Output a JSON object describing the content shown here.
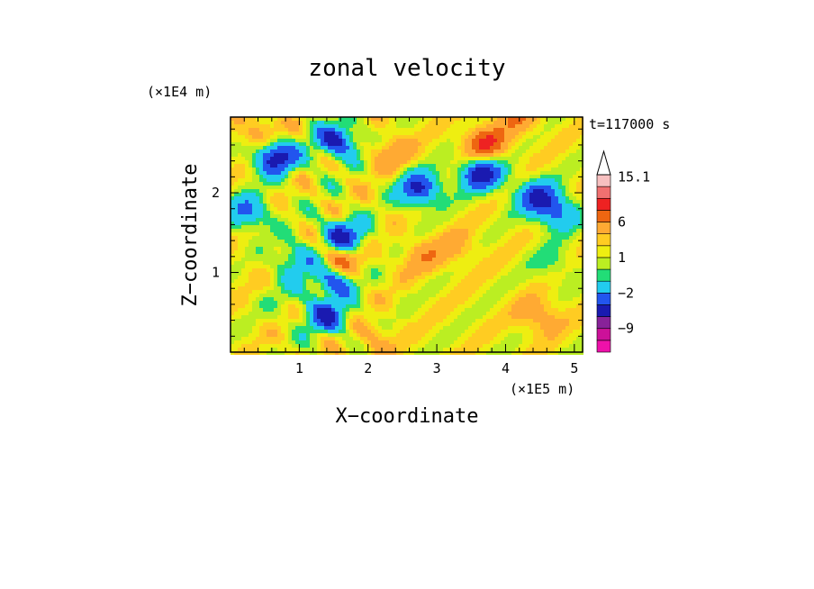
{
  "chart_data": {
    "type": "heatmap",
    "title": "zonal velocity",
    "xlabel": "X−coordinate",
    "ylabel": "Z−coordinate",
    "x_scale_label": "(×1E5 m)",
    "y_scale_label": "(×1E4 m)",
    "time_label": "t=117000 s",
    "xlim": [
      0,
      5.12
    ],
    "ylim": [
      0,
      2.95
    ],
    "x_ticks": [
      1,
      2,
      3,
      4,
      5
    ],
    "y_ticks": [
      1,
      2
    ],
    "x_tick_labels": [
      "1",
      "2",
      "3",
      "4",
      "5"
    ],
    "y_tick_labels": [
      "1",
      "2"
    ],
    "colorbar": {
      "levels": [
        -15,
        -12,
        -9,
        -6,
        -4,
        -2,
        -1,
        0,
        1,
        2,
        4,
        6,
        9,
        12,
        15.1
      ],
      "colors": [
        "#ee11aa",
        "#cc1199",
        "#882299",
        "#1a1ab0",
        "#2255ee",
        "#22ccee",
        "#22dd77",
        "#bbee22",
        "#eeee11",
        "#ffcc22",
        "#ffaa33",
        "#ee6611",
        "#ee2222",
        "#f07070",
        "#f7c0c0"
      ],
      "tick_values": [
        15.1,
        6,
        1,
        -2,
        -9
      ],
      "tick_labels": [
        "15.1",
        "6",
        "1",
        "−2",
        "−9"
      ],
      "extend": "max"
    },
    "background_value": 0.5,
    "features": [
      {
        "x": 0.65,
        "z": 2.45,
        "value": -8
      },
      {
        "x": 1.55,
        "z": 2.65,
        "value": -7
      },
      {
        "x": 2.75,
        "z": 2.05,
        "value": -7
      },
      {
        "x": 3.65,
        "z": 2.25,
        "value": -8
      },
      {
        "x": 4.45,
        "z": 1.95,
        "value": -6
      },
      {
        "x": 4.75,
        "z": 1.75,
        "value": -5
      },
      {
        "x": 0.25,
        "z": 1.75,
        "value": -5
      },
      {
        "x": 1.65,
        "z": 1.45,
        "value": -7
      },
      {
        "x": 1.5,
        "z": 0.9,
        "value": -6
      },
      {
        "x": 1.4,
        "z": 0.45,
        "value": -6
      },
      {
        "x": 0.95,
        "z": 1.15,
        "value": -4
      },
      {
        "x": 3.7,
        "z": 2.6,
        "value": 6
      },
      {
        "x": 0.4,
        "z": 2.75,
        "value": 3
      },
      {
        "x": 2.35,
        "z": 2.5,
        "value": 3
      },
      {
        "x": 1.6,
        "z": 1.15,
        "value": 5
      },
      {
        "x": 2.8,
        "z": 1.2,
        "value": 2.5
      },
      {
        "x": 3.3,
        "z": 1.3,
        "value": 2
      },
      {
        "x": 4.5,
        "z": 0.45,
        "value": 3
      },
      {
        "x": 4.2,
        "z": 2.95,
        "value": 3
      },
      {
        "x": 0.8,
        "z": 0.7,
        "value": -1
      },
      {
        "x": 4.7,
        "z": 1.1,
        "value": -2
      },
      {
        "x": 2.1,
        "z": 0.15,
        "value": 2
      },
      {
        "x": 3.6,
        "z": 0.7,
        "value": 0.2
      },
      {
        "x": 0.2,
        "z": 1.1,
        "value": 0.3
      }
    ]
  }
}
